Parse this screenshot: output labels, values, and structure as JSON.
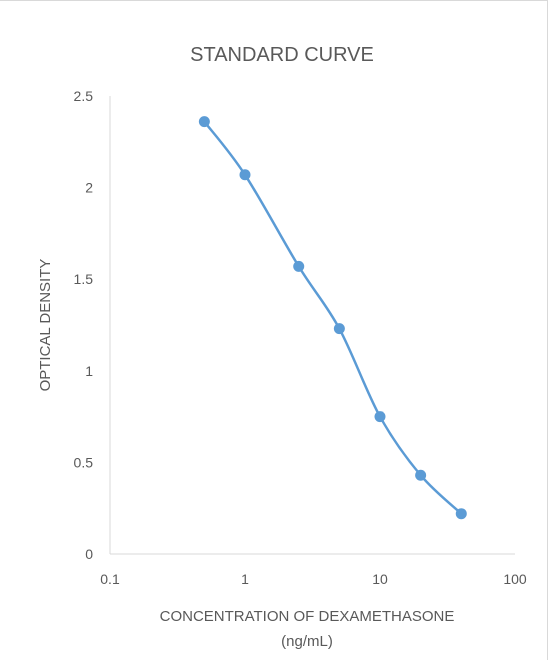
{
  "chart_data": {
    "type": "scatter",
    "title": "STANDARD CURVE",
    "xlabel_lines": [
      "CONCENTRATION OF DEXAMETHASONE",
      "(ng/mL)"
    ],
    "ylabel": "OPTICAL DENSITY",
    "x_scale": "log",
    "xlim": [
      0.1,
      100
    ],
    "ylim": [
      0,
      2.5
    ],
    "x_ticks": [
      "0.1",
      "1",
      "10",
      "100"
    ],
    "y_ticks": [
      "0",
      "0.5",
      "1",
      "1.5",
      "2",
      "2.5"
    ],
    "grid": false,
    "legend": "none",
    "line_style": "smoothed",
    "series": [
      {
        "color": "#5b9bd5",
        "x": [
          0.5,
          1,
          2.5,
          5,
          10,
          20,
          40
        ],
        "y": [
          2.36,
          2.07,
          1.57,
          1.23,
          0.75,
          0.43,
          0.22
        ]
      }
    ]
  }
}
